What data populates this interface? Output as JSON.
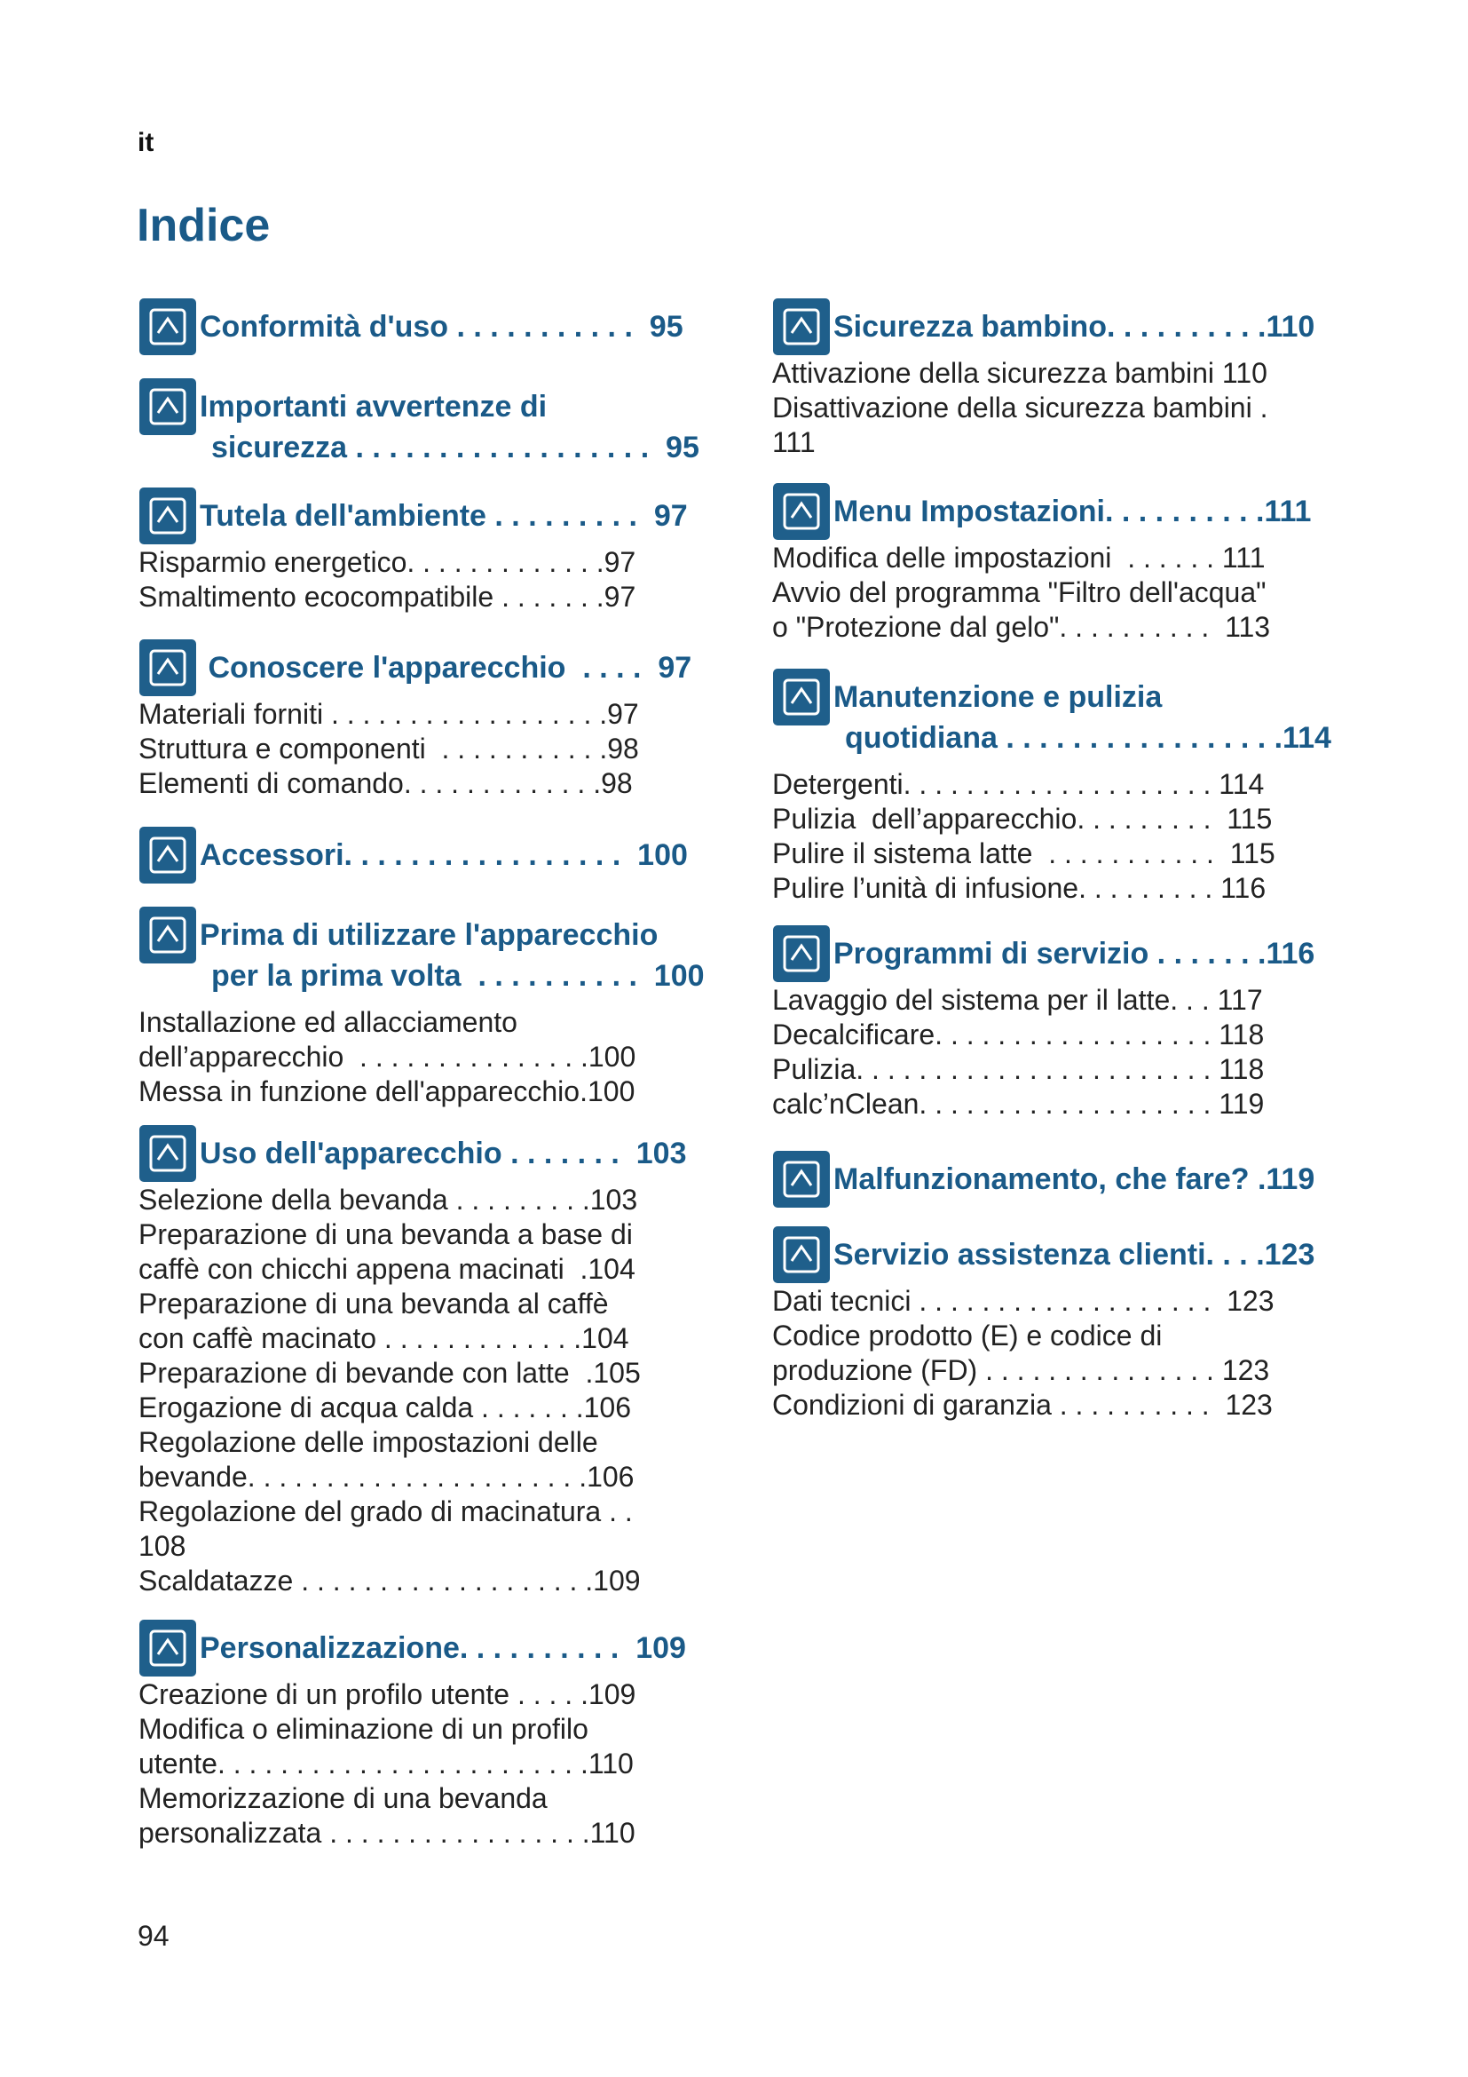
{
  "lang": "it",
  "title": "Indice",
  "columns": [
    {
      "sections": [
        {
          "heading": [
            "Conformità d'uso . . . . . . . . . . .  95"
          ],
          "entries": []
        },
        {
          "heading": [
            "Importanti avvertenze di",
            "sicurezza . . . . . . . . . . . . . . . . . .  95"
          ],
          "entries": []
        },
        {
          "heading": [
            "Tutela dell'ambiente . . . . . . . . .  97"
          ],
          "entries": [
            "Risparmio energetico. . . . . . . . . . . . .97",
            "Smaltimento ecocompatibile . . . . . . .97"
          ]
        },
        {
          "heading": [
            " Conoscere l'apparecchio  . . . .  97"
          ],
          "entries": [
            "Materiali forniti . . . . . . . . . . . . . . . . . .97",
            "Struttura e componenti  . . . . . . . . . . .98",
            "Elementi di comando. . . . . . . . . . . . .98"
          ]
        },
        {
          "heading": [
            "Accessori. . . . . . . . . . . . . . . . .  100"
          ],
          "entries": []
        },
        {
          "heading": [
            "Prima di utilizzare l'apparecchio",
            "per la prima volta  . . . . . . . . . .  100"
          ],
          "entries": [
            "Installazione ed allacciamento",
            "dell’apparecchio  . . . . . . . . . . . . . . .100",
            "Messa in funzione dell'apparecchio.100"
          ]
        },
        {
          "heading": [
            "Uso dell'apparecchio . . . . . . .  103"
          ],
          "entries": [
            "Selezione della bevanda . . . . . . . . .103",
            "Preparazione di una bevanda a base di",
            "caffè con chicchi appena macinati  .104",
            "Preparazione di una bevanda al caffè",
            "con caffè macinato . . . . . . . . . . . . .104",
            "Preparazione di bevande con latte  .105",
            "Erogazione di acqua calda . . . . . . .106",
            "Regolazione delle impostazioni delle",
            "bevande. . . . . . . . . . . . . . . . . . . . . .106",
            "Regolazione del grado di macinatura . .",
            "108",
            "Scaldatazze . . . . . . . . . . . . . . . . . . .109"
          ]
        },
        {
          "heading": [
            "Personalizzazione. . . . . . . . . .  109"
          ],
          "entries": [
            "Creazione di un profilo utente . . . . .109",
            "Modifica o eliminazione di un profilo",
            "utente. . . . . . . . . . . . . . . . . . . . . . . .110",
            "Memorizzazione di una bevanda",
            "personalizzata . . . . . . . . . . . . . . . . .110"
          ]
        }
      ]
    },
    {
      "sections": [
        {
          "heading": [
            "Sicurezza bambino. . . . . . . . . .110"
          ],
          "entries": [
            "Attivazione della sicurezza bambini 110",
            "Disattivazione della sicurezza bambini .",
            "111"
          ]
        },
        {
          "heading": [
            "Menu Impostazioni. . . . . . . . . .111"
          ],
          "entries": [
            "Modifica delle impostazioni  . . . . . . 111",
            "Avvio del programma \"Filtro dell'acqua\"",
            "o \"Protezione dal gelo\". . . . . . . . . .  113"
          ]
        },
        {
          "heading": [
            "Manutenzione e pulizia",
            "quotidiana . . . . . . . . . . . . . . . . .114"
          ],
          "entries": [
            "Detergenti. . . . . . . . . . . . . . . . . . . . 114",
            "Pulizia  dell’apparecchio. . . . . . . . .  115",
            "Pulire il sistema latte  . . . . . . . . . . .  115",
            "Pulire l’unità di infusione. . . . . . . . . 116"
          ]
        },
        {
          "heading": [
            "Programmi di servizio . . . . . . .116"
          ],
          "entries": [
            "Lavaggio del sistema per il latte. . . 117",
            "Decalcificare. . . . . . . . . . . . . . . . . . 118",
            "Pulizia. . . . . . . . . . . . . . . . . . . . . . . 118",
            "calc’nClean. . . . . . . . . . . . . . . . . . . 119"
          ]
        },
        {
          "heading": [
            "Malfunzionamento, che fare? .119"
          ],
          "entries": []
        },
        {
          "heading": [
            "Servizio assistenza clienti. . . .123"
          ],
          "entries": [
            "Dati tecnici . . . . . . . . . . . . . . . . . . .  123",
            "Codice prodotto (E) e codice di",
            "produzione (FD) . . . . . . . . . . . . . . . 123",
            "Condizioni di garanzia . . . . . . . . . .  123"
          ]
        }
      ]
    }
  ],
  "page_number": "94"
}
